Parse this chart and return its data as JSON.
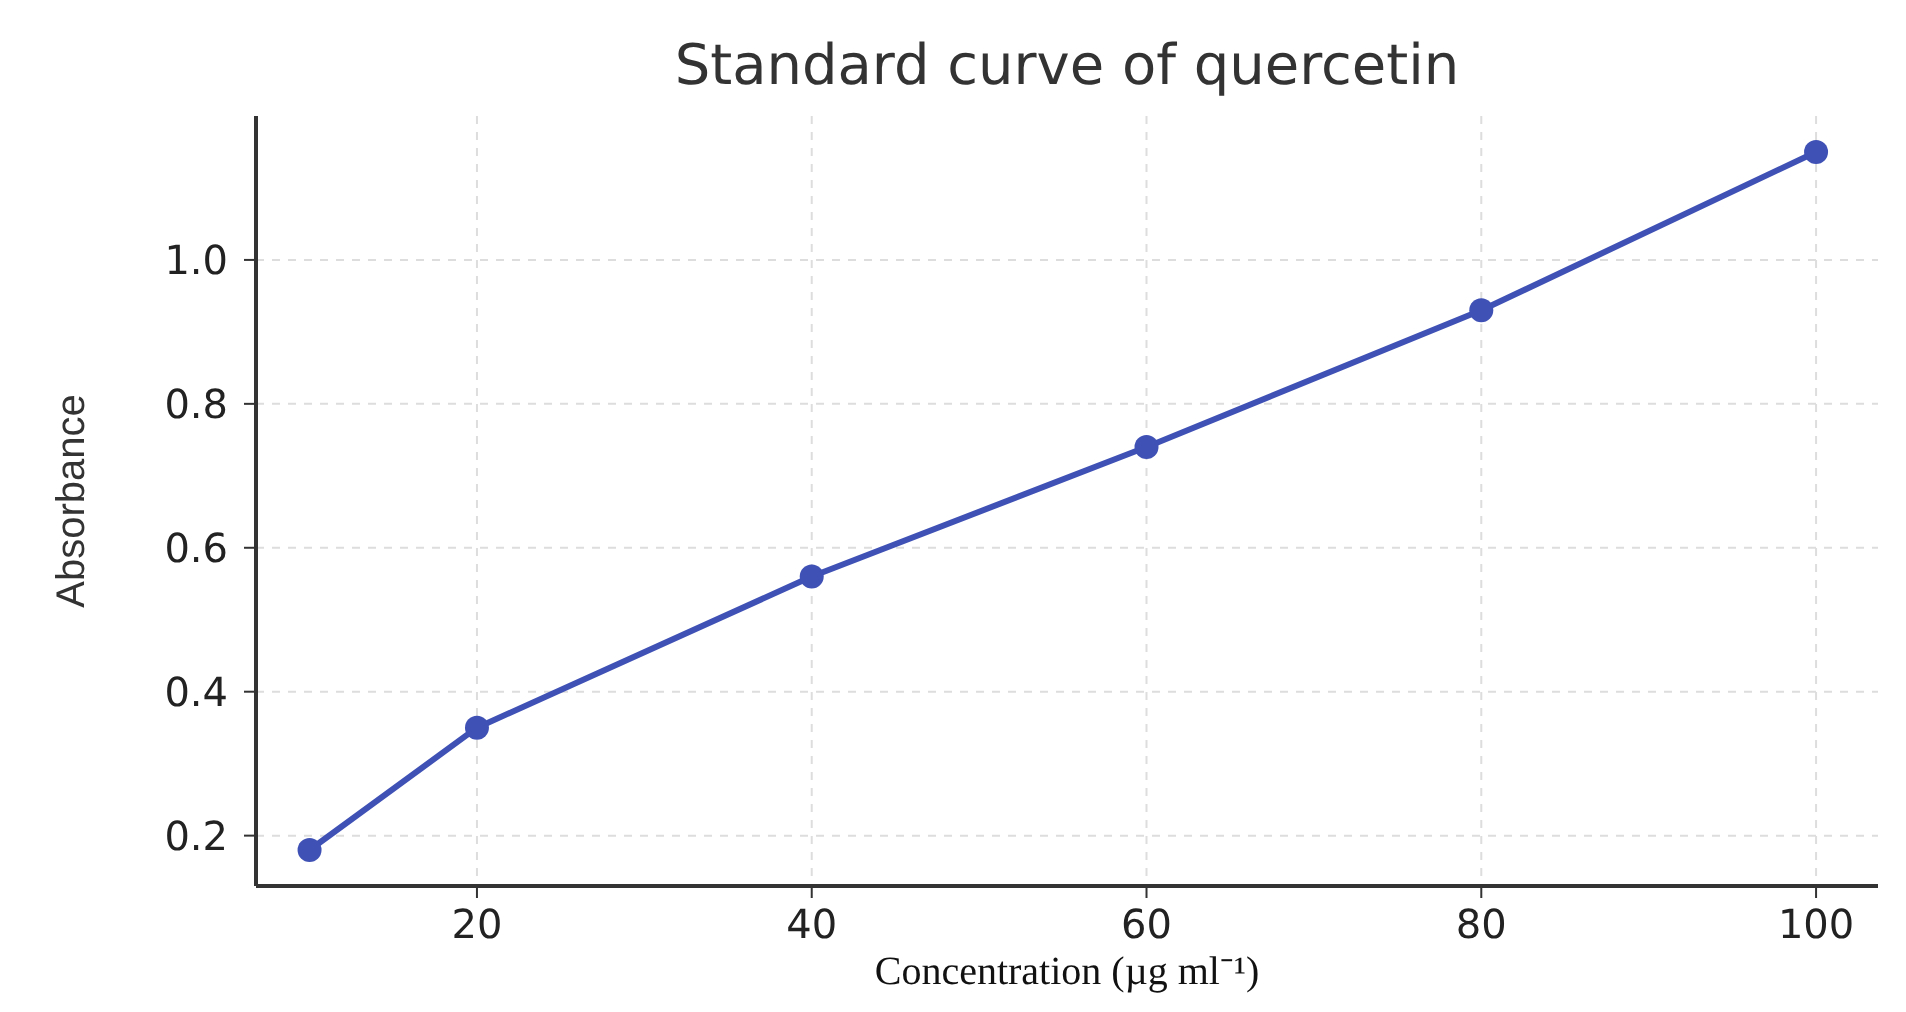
{
  "chart_data": {
    "type": "line",
    "title": "Standard curve of quercetin",
    "xlabel": "Concentration (µg ml⁻¹)",
    "ylabel": "Absorbance",
    "x": [
      10,
      20,
      40,
      60,
      80,
      100
    ],
    "series": [
      {
        "color": "#3f51b5",
        "values": [
          0.18,
          0.35,
          0.56,
          0.74,
          0.93,
          1.15
        ]
      }
    ],
    "xlim": [
      6.8,
      103.7
    ],
    "xticks": [
      20,
      40,
      60,
      80,
      100
    ],
    "ylim": [
      0.13,
      1.2
    ],
    "yticks": [
      {
        "value": 0.2,
        "label": "0.2"
      },
      {
        "value": 0.4,
        "label": "0.4"
      },
      {
        "value": 0.6,
        "label": "0.6"
      },
      {
        "value": 0.8,
        "label": "0.8"
      },
      {
        "value": 1.0,
        "label": "1.0"
      }
    ],
    "grid": true,
    "marker": "circle",
    "line_style": "solid"
  }
}
